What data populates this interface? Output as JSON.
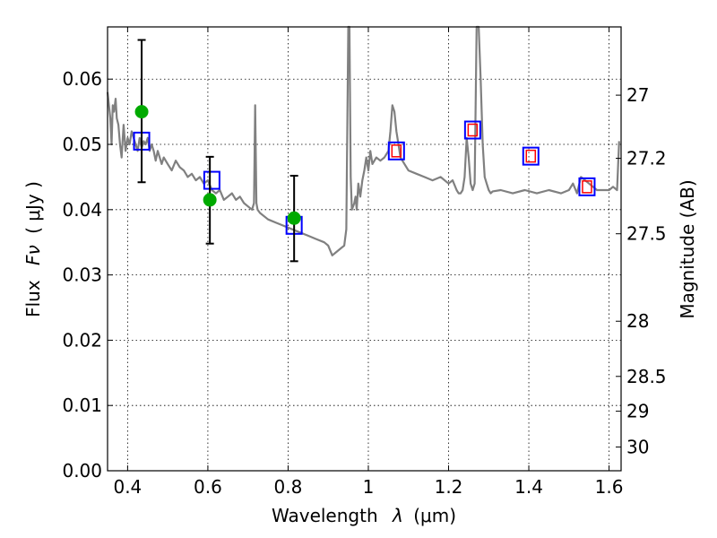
{
  "chart_data": {
    "type": "line",
    "xlabel_prefix": "Wavelength",
    "xlabel_symbol": "λ",
    "xlabel_unit": "(μm)",
    "ylabel_prefix": "Flux",
    "ylabel_symbol": "Fν",
    "ylabel_unit": "( μJy )",
    "y2label": "Magnitude (AB)",
    "xlim": [
      0.35,
      1.63
    ],
    "ylim": [
      0.0,
      0.068
    ],
    "xticks": [
      0.4,
      0.6,
      0.8,
      1.0,
      1.2,
      1.4,
      1.6
    ],
    "xtick_labels": [
      "0.4",
      "0.6",
      "0.8",
      "1",
      "1.2",
      "1.4",
      "1.6"
    ],
    "yticks": [
      0.0,
      0.01,
      0.02,
      0.03,
      0.04,
      0.05,
      0.06
    ],
    "ytick_labels": [
      "0.00",
      "0.01",
      "0.02",
      "0.03",
      "0.04",
      "0.05",
      "0.06"
    ],
    "magnitude_ticks": [
      27,
      27.2,
      27.5,
      28,
      28.5,
      29,
      30
    ],
    "magnitude_tick_labels": [
      "27",
      "27.2",
      "27.5",
      "28",
      "28.5",
      "29",
      "30"
    ],
    "grid": true,
    "colors": {
      "template": "#808080",
      "model_squares": "#0000ff",
      "inner_squares": "#ff0000",
      "observed": "#00aa00",
      "errorbars": "#000000"
    },
    "series": [
      {
        "name": "template_spectrum",
        "x": [
          0.35,
          0.357,
          0.36,
          0.363,
          0.366,
          0.37,
          0.373,
          0.377,
          0.381,
          0.385,
          0.39,
          0.395,
          0.4,
          0.405,
          0.41,
          0.415,
          0.42,
          0.425,
          0.43,
          0.435,
          0.44,
          0.445,
          0.45,
          0.455,
          0.46,
          0.465,
          0.47,
          0.475,
          0.48,
          0.485,
          0.49,
          0.5,
          0.51,
          0.52,
          0.53,
          0.54,
          0.55,
          0.56,
          0.57,
          0.58,
          0.59,
          0.6,
          0.61,
          0.62,
          0.63,
          0.64,
          0.65,
          0.66,
          0.67,
          0.68,
          0.69,
          0.7,
          0.71,
          0.715,
          0.718,
          0.721,
          0.724,
          0.73,
          0.75,
          0.77,
          0.79,
          0.81,
          0.83,
          0.85,
          0.87,
          0.89,
          0.9,
          0.91,
          0.92,
          0.93,
          0.94,
          0.945,
          0.95,
          0.953,
          0.956,
          0.959,
          0.962,
          0.965,
          0.968,
          0.971,
          0.975,
          0.98,
          0.985,
          0.99,
          0.995,
          1.0,
          1.005,
          1.01,
          1.02,
          1.03,
          1.04,
          1.05,
          1.055,
          1.06,
          1.065,
          1.07,
          1.075,
          1.08,
          1.09,
          1.1,
          1.12,
          1.14,
          1.16,
          1.18,
          1.2,
          1.21,
          1.22,
          1.225,
          1.23,
          1.235,
          1.24,
          1.245,
          1.25,
          1.255,
          1.26,
          1.265,
          1.27,
          1.275,
          1.28,
          1.285,
          1.29,
          1.295,
          1.3,
          1.305,
          1.31,
          1.33,
          1.36,
          1.39,
          1.42,
          1.45,
          1.48,
          1.5,
          1.51,
          1.52,
          1.53,
          1.55,
          1.57,
          1.6,
          1.61,
          1.62,
          1.625
        ],
        "y": [
          0.058,
          0.054,
          0.05,
          0.056,
          0.055,
          0.057,
          0.054,
          0.053,
          0.05,
          0.048,
          0.053,
          0.049,
          0.051,
          0.05,
          0.052,
          0.051,
          0.05,
          0.049,
          0.051,
          0.0495,
          0.0505,
          0.05,
          0.051,
          0.049,
          0.05,
          0.049,
          0.0475,
          0.049,
          0.048,
          0.047,
          0.048,
          0.047,
          0.046,
          0.0475,
          0.0465,
          0.046,
          0.045,
          0.0455,
          0.0445,
          0.045,
          0.044,
          0.0445,
          0.043,
          0.0425,
          0.043,
          0.0415,
          0.042,
          0.0425,
          0.0415,
          0.042,
          0.041,
          0.0405,
          0.04,
          0.041,
          0.056,
          0.041,
          0.04,
          0.0395,
          0.0385,
          0.038,
          0.0375,
          0.037,
          0.0365,
          0.036,
          0.0355,
          0.035,
          0.0345,
          0.033,
          0.0335,
          0.034,
          0.0345,
          0.037,
          0.068,
          0.068,
          0.045,
          0.04,
          0.0405,
          0.041,
          0.042,
          0.04,
          0.044,
          0.042,
          0.0445,
          0.046,
          0.048,
          0.046,
          0.049,
          0.047,
          0.048,
          0.0475,
          0.048,
          0.049,
          0.052,
          0.056,
          0.055,
          0.052,
          0.05,
          0.048,
          0.047,
          0.046,
          0.0455,
          0.045,
          0.0445,
          0.045,
          0.044,
          0.0445,
          0.043,
          0.0425,
          0.0425,
          0.043,
          0.045,
          0.051,
          0.048,
          0.044,
          0.043,
          0.044,
          0.068,
          0.068,
          0.06,
          0.05,
          0.045,
          0.044,
          0.043,
          0.0425,
          0.0428,
          0.043,
          0.0425,
          0.043,
          0.0425,
          0.043,
          0.0425,
          0.043,
          0.044,
          0.0425,
          0.045,
          0.044,
          0.043,
          0.043,
          0.0435,
          0.043,
          0.0505
        ]
      },
      {
        "name": "model_photometry",
        "x": [
          0.435,
          0.61,
          0.815,
          1.07,
          1.26,
          1.405,
          1.545
        ],
        "y": [
          0.0505,
          0.0445,
          0.0376,
          0.049,
          0.0522,
          0.0482,
          0.0435
        ],
        "inner_marker": [
          false,
          false,
          false,
          true,
          true,
          true,
          true
        ]
      },
      {
        "name": "observed_flux",
        "x": [
          0.435,
          0.605,
          0.815
        ],
        "y": [
          0.055,
          0.0415,
          0.0387
        ],
        "err_low": [
          0.0442,
          0.0348,
          0.0321
        ],
        "err_high": [
          0.066,
          0.0481,
          0.0452
        ]
      }
    ]
  }
}
